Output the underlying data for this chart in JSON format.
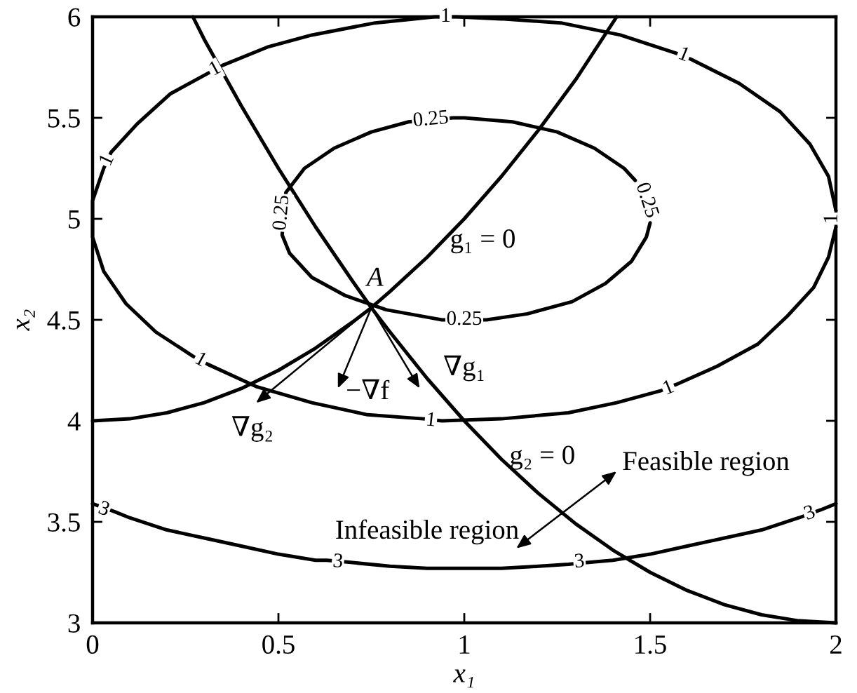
{
  "chart_data": {
    "type": "line",
    "xlabel": "x₁",
    "ylabel": "x₂",
    "xlim": [
      0,
      2
    ],
    "ylim": [
      3,
      6
    ],
    "xticks": [
      0,
      0.5,
      1,
      1.5,
      2
    ],
    "yticks": [
      3,
      3.5,
      4,
      4.5,
      5,
      5.5,
      6
    ],
    "series": [
      {
        "color": "#000000",
        "x": [
          1.46,
          1.43,
          1.35,
          1.25,
          1.13,
          1.0,
          0.97,
          0.85,
          0.75,
          0.65,
          0.57,
          0.52,
          0.51,
          0.53,
          0.59,
          0.68,
          0.79,
          0.91,
          0.94,
          1.06,
          1.17,
          1.29,
          1.38,
          1.45,
          1.49,
          1.5
        ],
        "values": [
          5.19,
          5.25,
          5.35,
          5.43,
          5.48,
          5.5,
          5.5,
          5.48,
          5.43,
          5.35,
          5.25,
          5.13,
          4.92,
          4.83,
          4.71,
          4.62,
          4.55,
          4.51,
          4.5,
          4.5,
          4.53,
          4.59,
          4.68,
          4.79,
          4.91,
          4.98
        ]
      },
      {
        "color": "#000000",
        "x": [
          2.0,
          1.98,
          1.93,
          1.85,
          1.74,
          1.61,
          1.57,
          1.42,
          1.26,
          1.1,
          0.98,
          0.92,
          0.76,
          0.59,
          0.47,
          0.35,
          0.31,
          0.21,
          0.12,
          0.05,
          0.03,
          0.0,
          0.0,
          0.03,
          0.09,
          0.17,
          0.27,
          0.31,
          0.44,
          0.59,
          0.74,
          0.89,
          0.94,
          1.1,
          1.28,
          1.41,
          1.53,
          1.57,
          1.68,
          1.79,
          1.87,
          1.94,
          1.98,
          2.0
        ],
        "values": [
          5.04,
          5.21,
          5.37,
          5.53,
          5.67,
          5.79,
          5.82,
          5.91,
          5.97,
          5.99,
          6.0,
          6.0,
          5.97,
          5.91,
          5.85,
          5.76,
          5.72,
          5.62,
          5.47,
          5.33,
          5.25,
          5.09,
          4.91,
          4.74,
          4.58,
          4.44,
          4.32,
          4.28,
          4.17,
          4.09,
          4.03,
          4.01,
          4.0,
          4.01,
          4.04,
          4.09,
          4.15,
          4.18,
          4.27,
          4.38,
          4.52,
          4.66,
          4.81,
          4.96
        ]
      },
      {
        "color": "#000000",
        "x": [
          0.0,
          0.06,
          0.1,
          0.2,
          0.3,
          0.4,
          0.5,
          0.6,
          0.63,
          0.69,
          0.8,
          0.9,
          1.0,
          1.1,
          1.2,
          1.28,
          1.34,
          1.4,
          1.5,
          1.6,
          1.7,
          1.8,
          1.9,
          1.96,
          2.0
        ],
        "values": [
          3.59,
          3.55,
          3.52,
          3.46,
          3.42,
          3.38,
          3.34,
          3.31,
          3.31,
          3.3,
          3.28,
          3.27,
          3.27,
          3.27,
          3.28,
          3.29,
          3.3,
          3.31,
          3.34,
          3.38,
          3.42,
          3.46,
          3.52,
          3.56,
          3.59
        ]
      },
      {
        "color": "#000000",
        "x": [
          0,
          0.1,
          0.2,
          0.3,
          0.4,
          0.5,
          0.6,
          0.7,
          0.75,
          0.8,
          0.9,
          1.0,
          1.1,
          1.2,
          1.3,
          1.41
        ],
        "values": [
          4.0,
          4.01,
          4.04,
          4.09,
          4.16,
          4.25,
          4.36,
          4.49,
          4.56,
          4.64,
          4.81,
          5.0,
          5.21,
          5.44,
          5.69,
          6.0
        ]
      },
      {
        "color": "#000000",
        "x": [
          0.27,
          0.3,
          0.4,
          0.5,
          0.6,
          0.7,
          0.75,
          0.8,
          0.9,
          1.0,
          1.1,
          1.2,
          1.3,
          1.4,
          1.5,
          1.6,
          1.7,
          1.8,
          1.9,
          2.0
        ],
        "values": [
          6.0,
          5.89,
          5.56,
          5.25,
          4.96,
          4.69,
          4.56,
          4.44,
          4.21,
          4.0,
          3.81,
          3.64,
          3.49,
          3.36,
          3.25,
          3.16,
          3.09,
          3.04,
          3.01,
          3.0
        ]
      }
    ],
    "annotations": [
      {
        "text": "1",
        "x": 0.95,
        "y": 6.0
      },
      {
        "text": "1",
        "x": 0.33,
        "y": 5.74
      },
      {
        "text": "1",
        "x": 0.04,
        "y": 5.29
      },
      {
        "text": "1",
        "x": 1.59,
        "y": 5.81
      },
      {
        "text": "1",
        "x": 0.29,
        "y": 4.3
      },
      {
        "text": "1",
        "x": 0.91,
        "y": 4.0
      },
      {
        "text": "1",
        "x": 1.55,
        "y": 4.16
      },
      {
        "text": "0.25",
        "x": 0.91,
        "y": 5.49
      },
      {
        "text": "0.25",
        "x": 0.51,
        "y": 5.03
      },
      {
        "text": "0.25",
        "x": 1.0,
        "y": 4.5
      },
      {
        "text": "3",
        "x": 0.03,
        "y": 3.56
      },
      {
        "text": "3",
        "x": 0.66,
        "y": 3.3
      },
      {
        "text": "3",
        "x": 1.31,
        "y": 3.3
      },
      {
        "text": "3",
        "x": 1.93,
        "y": 3.54
      },
      "1",
      "0.25",
      "A",
      "g₁ = 0",
      "g₂ = 0",
      {
        "text": "∇g₂",
        "x": 0.75,
        "y": 4.56
      },
      {
        "text": "−∇f",
        "x": 0.75,
        "y": 4.56
      },
      {
        "text": "∇g₁",
        "x": 0.75,
        "y": 4.56
      },
      "Feasible region",
      "Infeasible region"
    ]
  }
}
